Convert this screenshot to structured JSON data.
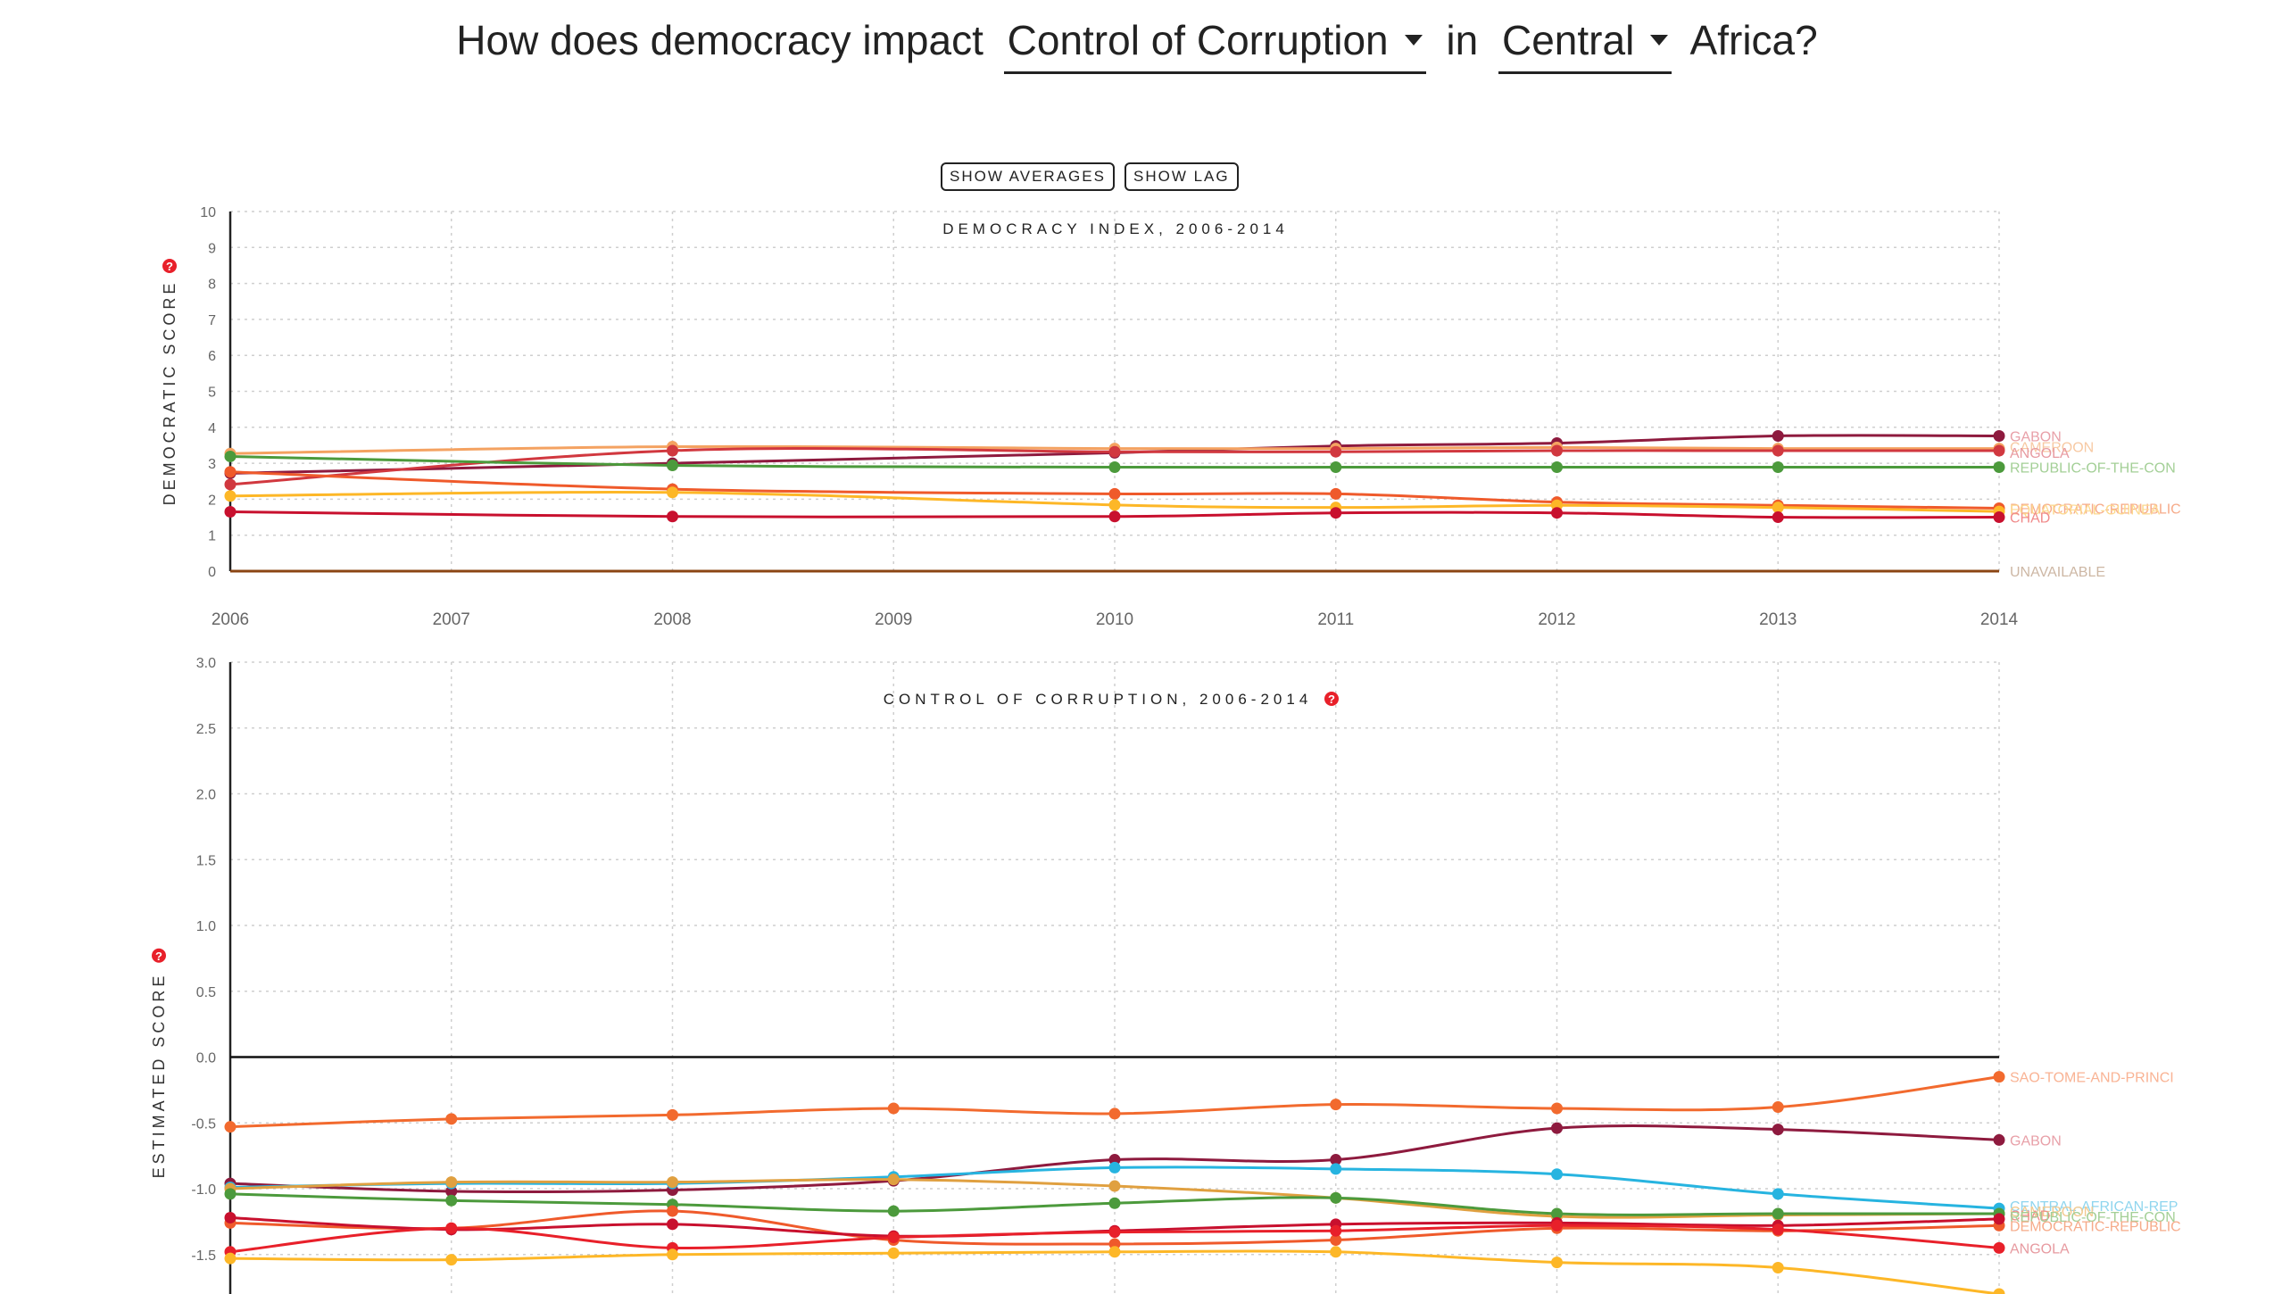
{
  "headline": {
    "part1": "How does democracy impact",
    "indicator": "Control of Corruption",
    "part2": "in",
    "region": "Central",
    "part3": "Africa?"
  },
  "buttons": {
    "averages": "SHOW AVERAGES",
    "lag": "SHOW LAG"
  },
  "colors": {
    "help": "#e8202a"
  },
  "chart_data": [
    {
      "type": "line",
      "title": "DEMOCRACY INDEX, 2006-2014",
      "ylabel": "DEMOCRATIC SCORE",
      "x": [
        2006,
        2007,
        2008,
        2009,
        2010,
        2011,
        2012,
        2013,
        2014
      ],
      "x_tick_labels": [
        "2006",
        "2007",
        "2008",
        "2009",
        "2010",
        "2011",
        "2012",
        "2013",
        "2014"
      ],
      "ylim": [
        0,
        10
      ],
      "y_ticks": [
        "0",
        "1",
        "2",
        "3",
        "4",
        "5",
        "6",
        "7",
        "8",
        "9",
        "10"
      ],
      "grid": true,
      "series": [
        {
          "name": "GABON",
          "color": "#8e1a3e",
          "points": [
            [
              2006,
              2.72
            ],
            [
              2008,
              3.0
            ],
            [
              2010,
              3.29
            ],
            [
              2011,
              3.48
            ],
            [
              2012,
              3.56
            ],
            [
              2013,
              3.76
            ],
            [
              2014,
              3.76
            ]
          ]
        },
        {
          "name": "CAMEROON",
          "color": "#f4a261",
          "points": [
            [
              2006,
              3.27
            ],
            [
              2008,
              3.46
            ],
            [
              2010,
              3.41
            ],
            [
              2011,
              3.41
            ],
            [
              2012,
              3.44
            ],
            [
              2013,
              3.41
            ],
            [
              2014,
              3.41
            ]
          ]
        },
        {
          "name": "ANGOLA",
          "color": "#d1383f",
          "points": [
            [
              2006,
              2.41
            ],
            [
              2008,
              3.35
            ],
            [
              2010,
              3.32
            ],
            [
              2011,
              3.32
            ],
            [
              2012,
              3.35
            ],
            [
              2013,
              3.35
            ],
            [
              2014,
              3.35
            ]
          ]
        },
        {
          "name": "REPUBLIC-OF-THE-CON",
          "color": "#4c9a3c",
          "points": [
            [
              2006,
              3.19
            ],
            [
              2008,
              2.94
            ],
            [
              2010,
              2.89
            ],
            [
              2011,
              2.89
            ],
            [
              2012,
              2.89
            ],
            [
              2013,
              2.89
            ],
            [
              2014,
              2.89
            ]
          ]
        },
        {
          "name": "DEMOCRATIC-REPUBLIC",
          "color": "#ef5a2b",
          "points": [
            [
              2006,
              2.76
            ],
            [
              2008,
              2.28
            ],
            [
              2010,
              2.15
            ],
            [
              2011,
              2.15
            ],
            [
              2012,
              1.92
            ],
            [
              2013,
              1.83
            ],
            [
              2014,
              1.75
            ]
          ]
        },
        {
          "name": "EQUATORIAL-GUINEA",
          "color": "#fdb727",
          "points": [
            [
              2006,
              2.09
            ],
            [
              2008,
              2.19
            ],
            [
              2010,
              1.84
            ],
            [
              2011,
              1.77
            ],
            [
              2012,
              1.83
            ],
            [
              2013,
              1.77
            ],
            [
              2014,
              1.66
            ]
          ]
        },
        {
          "name": "CHAD",
          "color": "#c8102e",
          "points": [
            [
              2006,
              1.65
            ],
            [
              2008,
              1.52
            ],
            [
              2010,
              1.52
            ],
            [
              2011,
              1.62
            ],
            [
              2012,
              1.62
            ],
            [
              2013,
              1.5
            ],
            [
              2014,
              1.5
            ]
          ]
        },
        {
          "name": "UNAVAILABLE",
          "color": "#8b4513",
          "points": [
            [
              2006,
              0
            ],
            [
              2014,
              0
            ]
          ]
        }
      ],
      "end_labels": [
        {
          "text": "GABON",
          "color": "#e8a0a8",
          "y": 3.76
        },
        {
          "text": "CAMEROON",
          "color": "#f7c9a3",
          "y": 3.46
        },
        {
          "text": "ANGOLA",
          "color": "#e79aa0",
          "y": 3.3
        },
        {
          "text": "REPUBLIC-OF-THE-CON",
          "color": "#a3cf96",
          "y": 2.89
        },
        {
          "text": "DEMOCRATIC-REPUBLIC",
          "color": "#f6ab8a",
          "y": 1.75
        },
        {
          "text": "EQUATORIAL-GUINEA",
          "color": "#fcd98f",
          "y": 1.72
        },
        {
          "text": "CHAD",
          "color": "#f08a8a",
          "y": 1.5
        },
        {
          "text": "UNAVAILABLE",
          "color": "#cdb7a4",
          "y": 0
        }
      ]
    },
    {
      "type": "line",
      "title": "CONTROL OF CORRUPTION, 2006-2014",
      "ylabel": "ESTIMATED SCORE",
      "x": [
        2006,
        2007,
        2008,
        2009,
        2010,
        2011,
        2012,
        2013,
        2014
      ],
      "ylim": [
        -1.8,
        3.0
      ],
      "y_ticks": [
        "-1.5",
        "-1.0",
        "-0.5",
        "0.0",
        "0.5",
        "1.0",
        "1.5",
        "2.0",
        "2.5",
        "3.0"
      ],
      "zero_line": true,
      "grid": true,
      "series": [
        {
          "name": "SAO-TOME-AND-PRINCIPE",
          "color": "#f26a2e",
          "values": [
            -0.53,
            -0.47,
            -0.44,
            -0.39,
            -0.43,
            -0.36,
            -0.39,
            -0.38,
            -0.15
          ]
        },
        {
          "name": "GABON",
          "color": "#8e1a3e",
          "values": [
            -0.96,
            -1.02,
            -1.01,
            -0.94,
            -0.78,
            -0.78,
            -0.54,
            -0.55,
            -0.63
          ]
        },
        {
          "name": "CENTRAL-AFRICAN-REPUBLIC",
          "color": "#27b4e0",
          "values": [
            -0.99,
            -0.96,
            -0.96,
            -0.91,
            -0.84,
            -0.85,
            -0.89,
            -1.04,
            -1.15
          ]
        },
        {
          "name": "CAMEROON",
          "color": "#e0a040",
          "values": [
            -1.0,
            -0.95,
            -0.95,
            -0.93,
            -0.98,
            -1.07,
            -1.21,
            -1.2,
            -1.19
          ]
        },
        {
          "name": "REPUBLIC-OF-THE-CONGO",
          "color": "#4c9a3c",
          "values": [
            -1.04,
            -1.09,
            -1.12,
            -1.17,
            -1.11,
            -1.07,
            -1.19,
            -1.19,
            -1.19
          ]
        },
        {
          "name": "DEMOCRATIC-REPUBLIC-OF-THE-CONGO",
          "color": "#ef5a2b",
          "values": [
            -1.26,
            -1.3,
            -1.17,
            -1.39,
            -1.42,
            -1.39,
            -1.3,
            -1.32,
            -1.28
          ]
        },
        {
          "name": "CHAD",
          "color": "#c8102e",
          "values": [
            -1.22,
            -1.31,
            -1.27,
            -1.36,
            -1.32,
            -1.27,
            -1.26,
            -1.28,
            -1.23
          ]
        },
        {
          "name": "ANGOLA",
          "color": "#e8202a",
          "values": [
            -1.48,
            -1.3,
            -1.45,
            -1.37,
            -1.33,
            -1.32,
            -1.28,
            -1.31,
            -1.45
          ]
        },
        {
          "name": "EQUATORIAL-GUINEA",
          "color": "#fdb727",
          "values": [
            -1.53,
            -1.54,
            -1.5,
            -1.49,
            -1.48,
            -1.48,
            -1.56,
            -1.6,
            -1.8
          ]
        }
      ],
      "end_labels": [
        {
          "text": "SAO-TOME-AND-PRINCI",
          "color": "#f9b394",
          "y": -0.15
        },
        {
          "text": "GABON",
          "color": "#e8a0a8",
          "y": -0.63
        },
        {
          "text": "CENTRAL-AFRICAN-REP",
          "color": "#8fd5ee",
          "y": -1.13
        },
        {
          "text": "CAMEROON",
          "color": "#f2c98e",
          "y": -1.17
        },
        {
          "text": "CHAD",
          "color": "#f08a8a",
          "y": -1.2
        },
        {
          "text": "REPUBLIC-OF-THE-CON",
          "color": "#a3cf96",
          "y": -1.21
        },
        {
          "text": "DEMOCRATIC-REPUBLIC",
          "color": "#f6ab8a",
          "y": -1.28
        },
        {
          "text": "ANGOLA",
          "color": "#e79aa0",
          "y": -1.45
        }
      ]
    }
  ]
}
